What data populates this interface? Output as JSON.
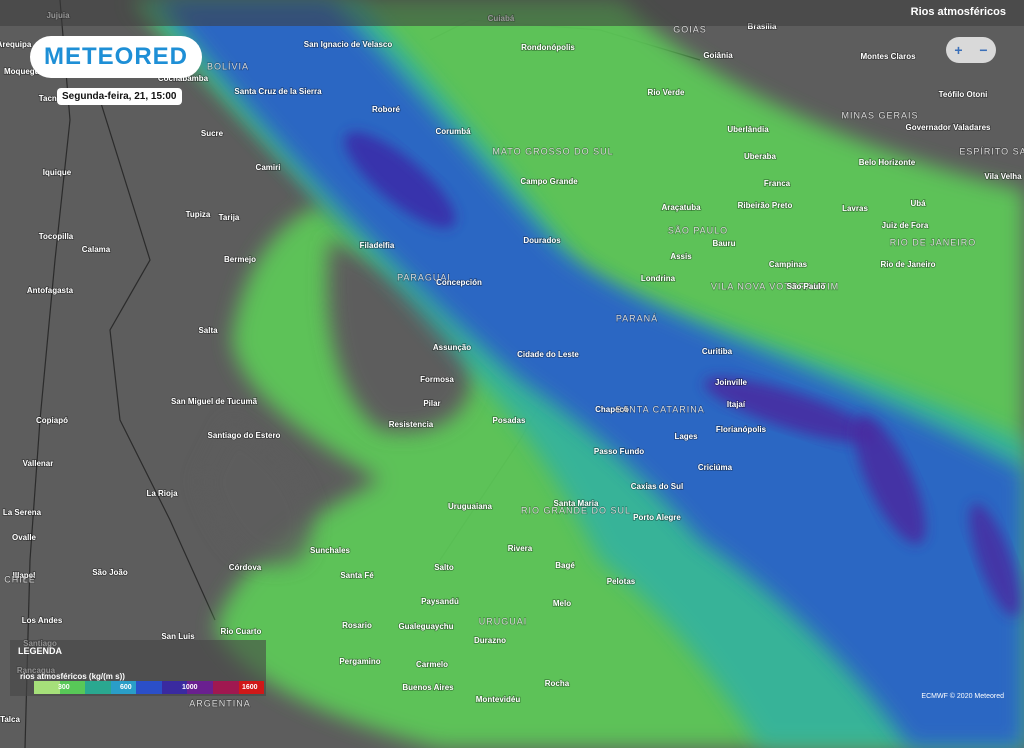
{
  "header": {
    "logo": "METEORED",
    "datetime": "Segunda-feira, 21, 15:00",
    "layer": "Rios atmosféricos"
  },
  "zoom": {
    "in": "+",
    "out": "−"
  },
  "legend": {
    "title": "LEGENDA",
    "label": "rios atmosféricos (kg/(m s))",
    "ticks": [
      300,
      600,
      1000,
      1600
    ]
  },
  "credit": "ECMWF © 2020 Meteored",
  "places": [
    "Jujuia",
    "Cuiabá",
    "Brasília",
    "GOIÁS",
    "Goiânia",
    "Montes Claros",
    "San Ignacio de Velasco",
    "Rondonópolis",
    "Arequipa",
    "Moquegua",
    "Tacna",
    "Cochabamba",
    "BOLÍVIA",
    "Santa Cruz de la Sierra",
    "Rio Verde",
    "Teófilo Otoni",
    "Roboré",
    "MINAS GERAIS",
    "Governador Valadares",
    "Sucre",
    "Corumbá",
    "Uberlândia",
    "MATO GROSSO DO SUL",
    "ESPÍRITO SA",
    "Uberaba",
    "Belo Horizonte",
    "Camiri",
    "Iquique",
    "Vila Velha",
    "Campo Grande",
    "Franca",
    "Araçatuba",
    "Ribeirão Preto",
    "Lavras",
    "Ubá",
    "Tupiza",
    "Tarija",
    "Juiz de Fora",
    "SÃO PAULO",
    "Bauru",
    "RIO DE JANEIRO",
    "Tocopilla",
    "Filadelfia",
    "Dourados",
    "Calama",
    "Bermejo",
    "Assis",
    "Campinas",
    "Rio de Janeiro",
    "PARAGUAI",
    "Concepción",
    "Londrina",
    "VILA NOVA VOTORANTIM",
    "São Paulo",
    "Antofagasta",
    "PARANÁ",
    "Salta",
    "Assunção",
    "Cidade do Leste",
    "Curitiba",
    "Formosa",
    "Joinville",
    "San Miguel de Tucumã",
    "Pilar",
    "Itajaí",
    "Chapecó",
    "SANTA CATARINA",
    "Copiapó",
    "Posadas",
    "Resistencia",
    "Florianópolis",
    "Santiago do Estero",
    "Lages",
    "Passo Fundo",
    "Vallenar",
    "Criciúma",
    "Caxias do Sul",
    "La Rioja",
    "Uruguaiana",
    "Santa Maria",
    "RIO GRANDE DO SUL",
    "La Serena",
    "Porto Alegre",
    "Ovalle",
    "Sunchales",
    "Rivera",
    "Córdova",
    "Bagé",
    "Illapel",
    "São João",
    "Santa Fé",
    "Salto",
    "CHILE",
    "Pelotas",
    "Paysandú",
    "Melo",
    "Los Andes",
    "Rosario",
    "Gualeguaychu",
    "URUGUAI",
    "Durazno",
    "Rio Cuarto",
    "San Luis",
    "Santiago",
    "Pergamino",
    "Carmelo",
    "Rancagua",
    "Buenos Aires",
    "Rocha",
    "Montevidéu",
    "ARGENTINA",
    "Talca"
  ]
}
